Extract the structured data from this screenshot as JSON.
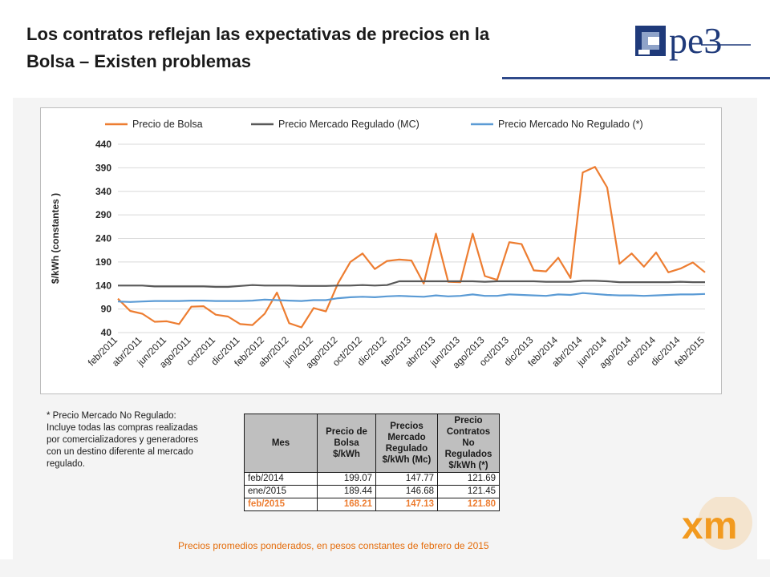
{
  "slide": {
    "title_line1": "Los contratos reflejan las expectativas de precios en la",
    "title_line2": "Bolsa – Existen problemas",
    "logo_text": "pe3",
    "xm_logo_text": "xm",
    "footer": "Precios promedios ponderados, en pesos constantes de febrero de 2015"
  },
  "note": {
    "line1": "* Precio Mercado No Regulado:",
    "line2": "Incluye todas las compras realizadas",
    "line3": "por comercializadores y generadores",
    "line4": "con un destino diferente al mercado",
    "line5": "regulado."
  },
  "table": {
    "headers": [
      "Mes",
      "Precio de Bolsa $/kWh",
      "Precios Mercado Regulado $/kWh (Mc)",
      "Precio Contratos No Regulados $/kWh (*)"
    ],
    "rows": [
      [
        "feb/2014",
        "199.07",
        "147.77",
        "121.69"
      ],
      [
        "ene/2015",
        "189.44",
        "146.68",
        "121.45"
      ],
      [
        "feb/2015",
        "168.21",
        "147.13",
        "121.80"
      ]
    ]
  },
  "colors": {
    "bolsa": "#ed7d31",
    "regulado": "#595959",
    "no_regulado": "#5b9bd5",
    "title_rule": "#2f4a8a",
    "xm_orange": "#f29a1f"
  },
  "chart_data": {
    "type": "line",
    "title": "",
    "xlabel": "",
    "ylabel": "$/kWh (constantes )",
    "ylim": [
      40,
      440
    ],
    "yticks": [
      40,
      90,
      140,
      190,
      240,
      290,
      340,
      390,
      440
    ],
    "grid": true,
    "legend_position": "top",
    "x_tick_labels": [
      "feb/2011",
      "abr/2011",
      "jun/2011",
      "ago/2011",
      "oct/2011",
      "dic/2011",
      "feb/2012",
      "abr/2012",
      "jun/2012",
      "ago/2012",
      "oct/2012",
      "dic/2012",
      "feb/2013",
      "abr/2013",
      "jun/2013",
      "ago/2013",
      "oct/2013",
      "dic/2013",
      "feb/2014",
      "abr/2014",
      "jun/2014",
      "ago/2014",
      "oct/2014",
      "dic/2014",
      "feb/2015"
    ],
    "series": [
      {
        "name": "Precio de Bolsa",
        "color": "#ed7d31",
        "values": [
          112,
          86,
          80,
          63,
          64,
          58,
          95,
          96,
          78,
          74,
          58,
          56,
          80,
          125,
          60,
          51,
          92,
          85,
          145,
          190,
          208,
          175,
          192,
          195,
          193,
          144,
          250,
          148,
          147,
          250,
          160,
          152,
          232,
          228,
          172,
          170,
          199,
          156,
          380,
          392,
          348,
          186,
          208,
          180,
          210,
          168,
          176,
          189,
          168
        ]
      },
      {
        "name": "Precio Mercado Regulado (MC)",
        "color": "#595959",
        "values": [
          140,
          140,
          140,
          138,
          138,
          138,
          138,
          138,
          137,
          137,
          139,
          141,
          140,
          140,
          140,
          139,
          139,
          139,
          140,
          140,
          141,
          140,
          141,
          149,
          149,
          149,
          149,
          149,
          149,
          149,
          148,
          149,
          149,
          149,
          149,
          148,
          148,
          148,
          150,
          150,
          149,
          147,
          147,
          147,
          147,
          147,
          148,
          147,
          147
        ]
      },
      {
        "name": "Precio Mercado No Regulado (*)",
        "color": "#5b9bd5",
        "values": [
          106,
          105,
          106,
          107,
          107,
          107,
          108,
          108,
          107,
          107,
          107,
          108,
          110,
          109,
          108,
          107,
          109,
          109,
          113,
          115,
          116,
          115,
          117,
          118,
          117,
          116,
          119,
          117,
          118,
          121,
          118,
          118,
          121,
          120,
          119,
          118,
          121,
          120,
          124,
          122,
          120,
          119,
          119,
          118,
          119,
          120,
          121,
          121,
          122
        ]
      }
    ]
  }
}
